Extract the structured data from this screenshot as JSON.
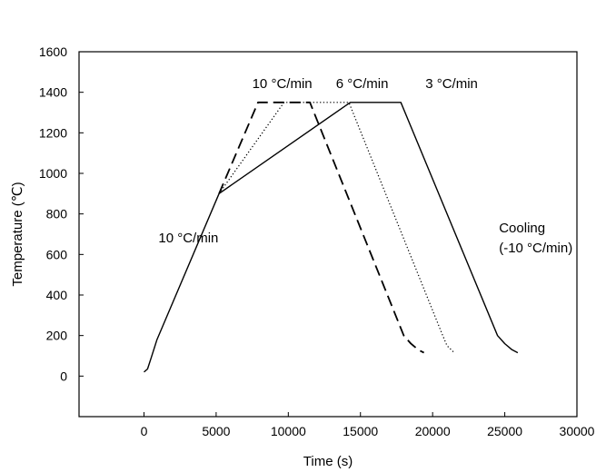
{
  "chart_data": {
    "type": "line",
    "title": "",
    "xlabel": "Time (s)",
    "ylabel": "Temperature (℃)",
    "xlim": [
      -4500,
      30000
    ],
    "ylim": [
      -200,
      1600
    ],
    "xticks": [
      0,
      5000,
      10000,
      15000,
      20000,
      25000,
      30000
    ],
    "yticks": [
      0,
      200,
      400,
      600,
      800,
      1000,
      1200,
      1400,
      1600
    ],
    "grid": false,
    "series": [
      {
        "name": "3 °C/min",
        "style": "solid",
        "points": [
          [
            0,
            20
          ],
          [
            250,
            35
          ],
          [
            500,
            90
          ],
          [
            900,
            180
          ],
          [
            5200,
            900
          ],
          [
            14300,
            1350
          ],
          [
            17800,
            1350
          ],
          [
            24500,
            200
          ],
          [
            25000,
            160
          ],
          [
            25500,
            130
          ],
          [
            25900,
            115
          ]
        ]
      },
      {
        "name": "6 °C/min",
        "style": "dotted",
        "points": [
          [
            5200,
            900
          ],
          [
            9700,
            1350
          ],
          [
            14200,
            1350
          ],
          [
            20700,
            200
          ],
          [
            21000,
            150
          ],
          [
            21500,
            115
          ]
        ]
      },
      {
        "name": "10 °C/min",
        "style": "dashed",
        "points": [
          [
            5200,
            900
          ],
          [
            7900,
            1350
          ],
          [
            11500,
            1350
          ],
          [
            18000,
            200
          ],
          [
            18500,
            160
          ],
          [
            19000,
            130
          ],
          [
            19400,
            115
          ]
        ]
      }
    ],
    "annotations": [
      {
        "text": "10 °C/min",
        "x": 1000,
        "y": 660
      },
      {
        "text": "10 °C/min",
        "x": 7500,
        "y": 1420
      },
      {
        "text": "6 °C/min",
        "x": 13300,
        "y": 1420
      },
      {
        "text": "3 °C/min",
        "x": 19500,
        "y": 1420
      },
      {
        "text": "Cooling",
        "x": 24600,
        "y": 710
      },
      {
        "text": "(-10 °C/min)",
        "x": 24600,
        "y": 610
      }
    ]
  }
}
